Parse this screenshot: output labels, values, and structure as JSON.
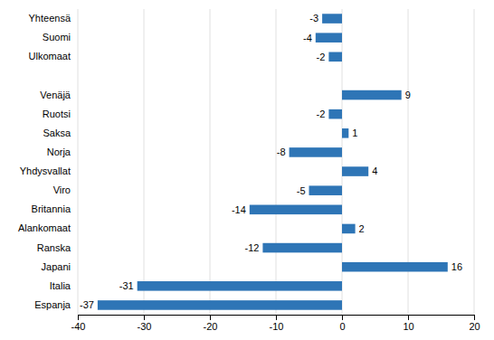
{
  "chart_data": {
    "type": "bar",
    "orientation": "horizontal",
    "categories": [
      "Espanja",
      "Italia",
      "Japani",
      "Ranska",
      "Alankomaat",
      "Britannia",
      "Viro",
      "Yhdysvallat",
      "Norja",
      "Saksa",
      "Ruotsi",
      "Venäjä",
      null,
      "Ulkomaat",
      "Suomi",
      "Yhteensä"
    ],
    "values": [
      -37,
      -31,
      16,
      -12,
      2,
      -14,
      -5,
      4,
      -8,
      1,
      -2,
      9,
      null,
      -2,
      -4,
      -3
    ],
    "color": "#2E75B6",
    "xlim": [
      -40,
      20
    ],
    "xticks": [
      -40,
      -30,
      -20,
      -10,
      0,
      10,
      20
    ],
    "grid": true,
    "data_labels": true
  }
}
